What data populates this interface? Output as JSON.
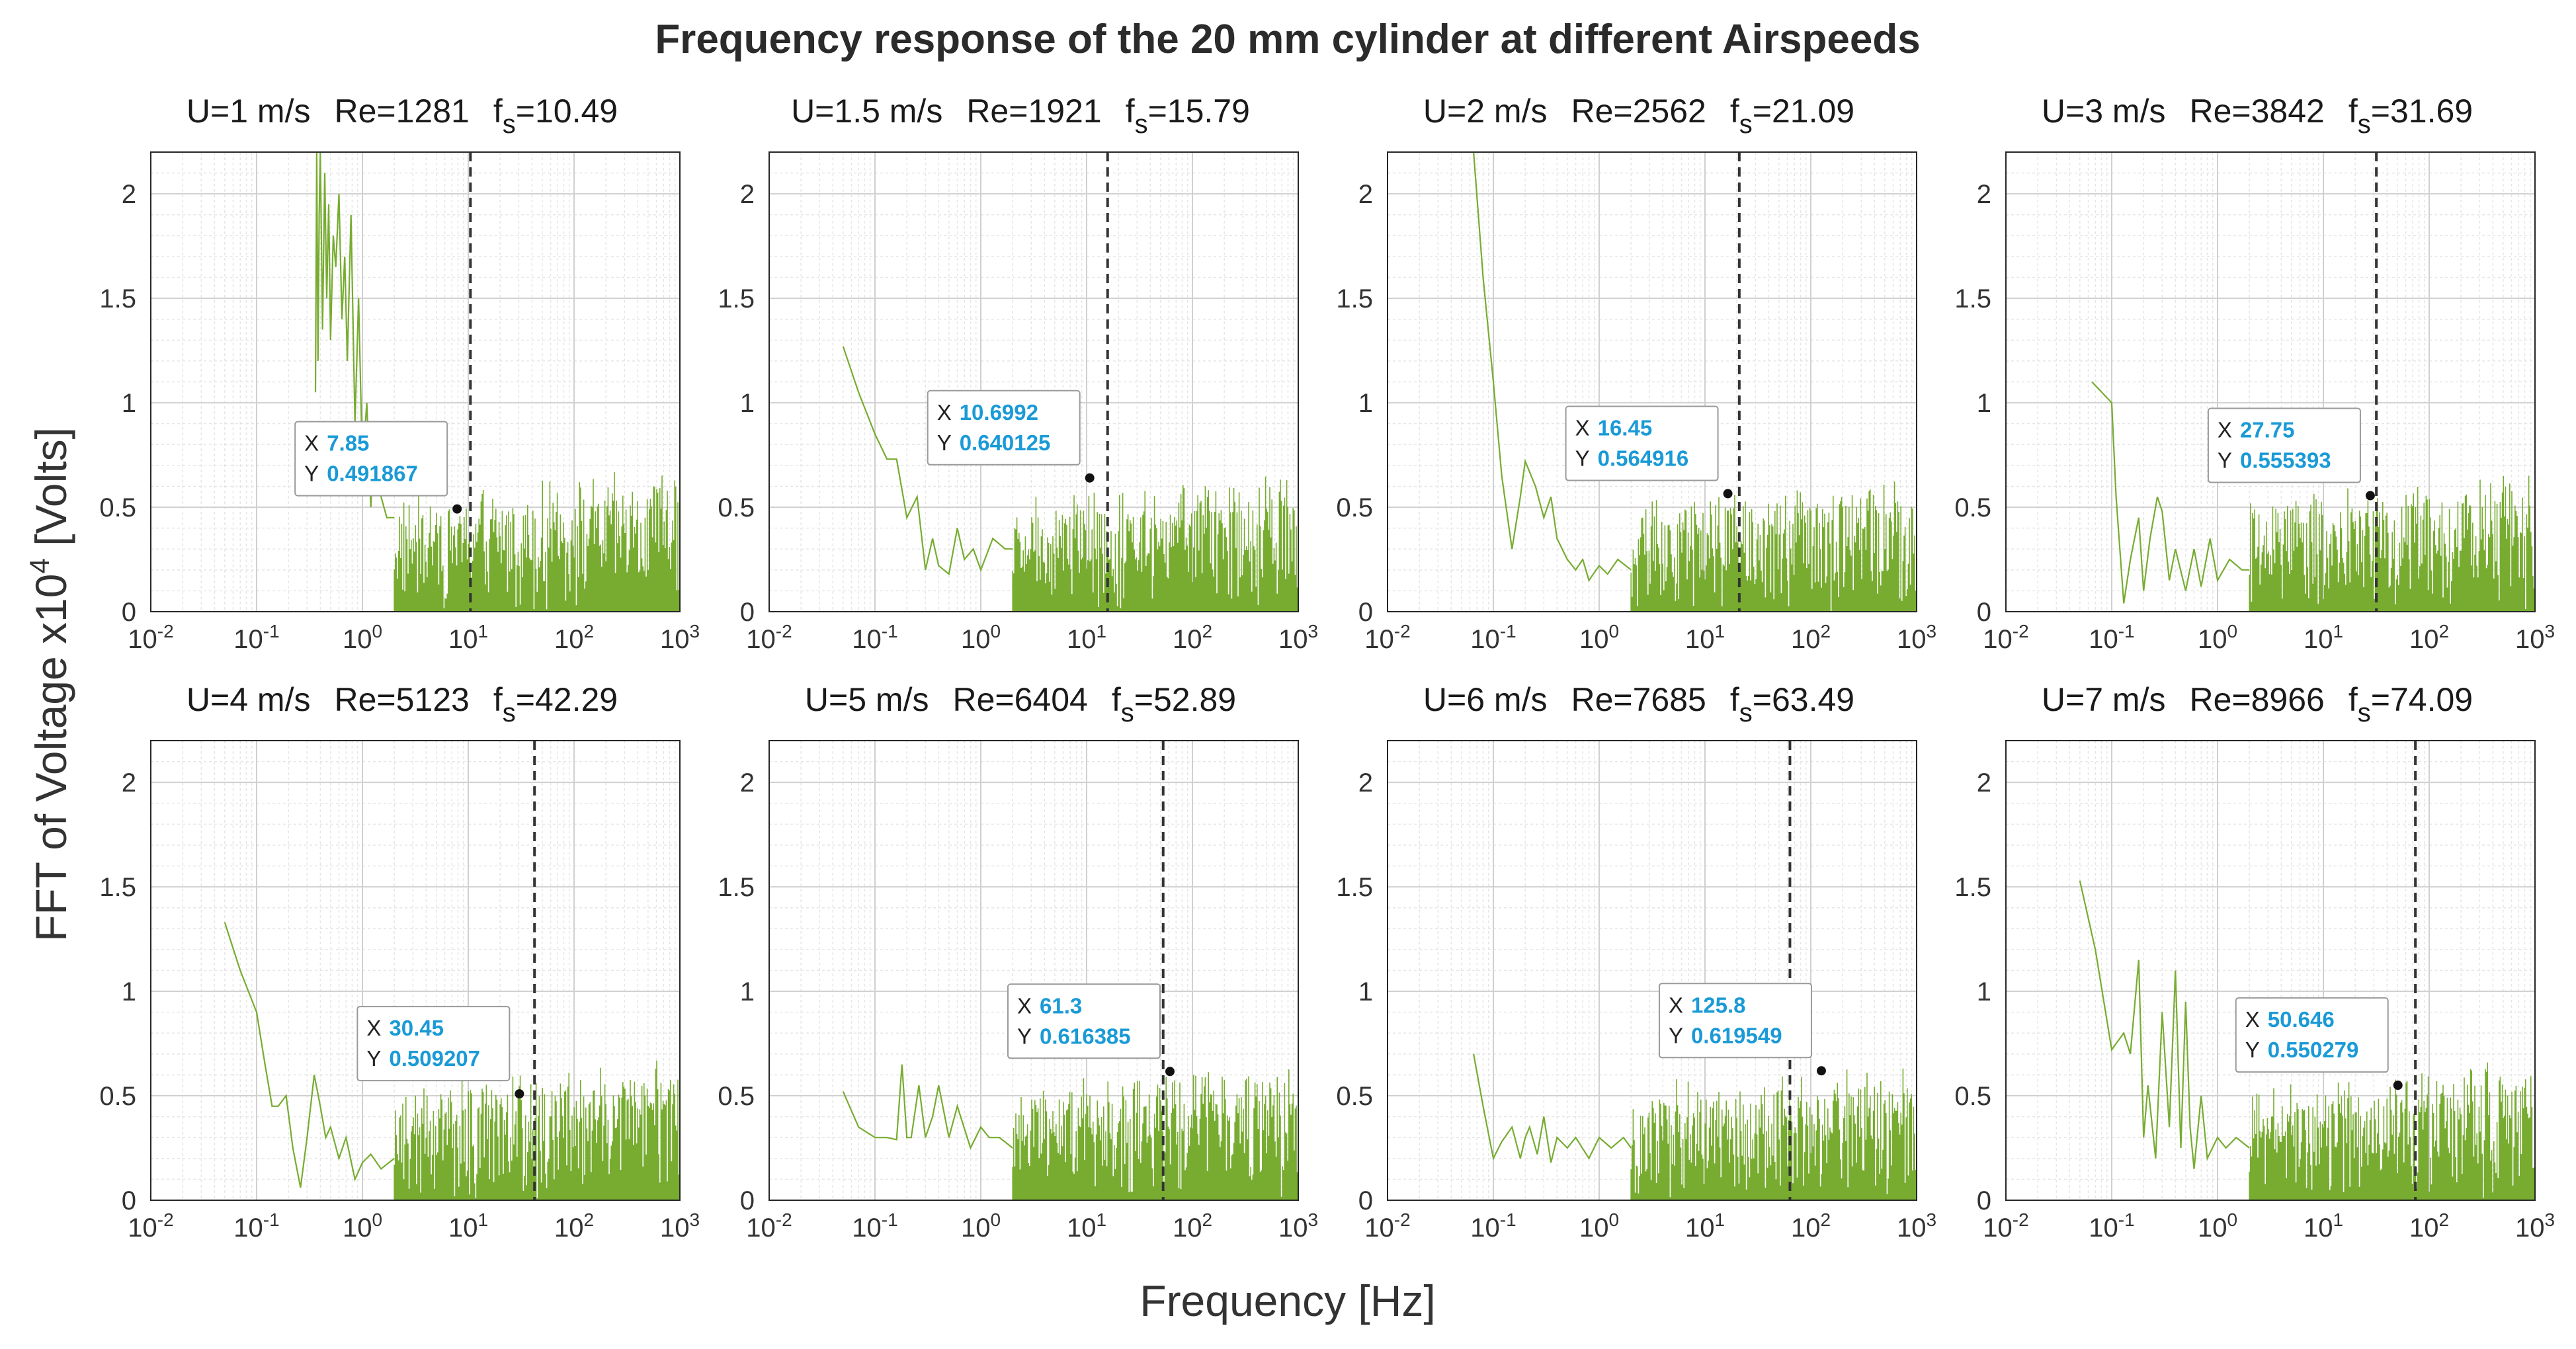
{
  "chart_data": {
    "type": "line",
    "title": "Frequency response of the 20 mm cylinder at different Airspeeds",
    "xlabel": "Frequency [Hz]",
    "ylabel": "FFT of Voltage x10",
    "ylabel_exponent": "4",
    "ylabel_unit": " [Volts]",
    "x_scale": "log",
    "xlim": [
      0.01,
      1000
    ],
    "ylim": [
      0,
      2.2
    ],
    "x_ticks": [
      {
        "value": 0.01,
        "base": "10",
        "exp": "-2"
      },
      {
        "value": 0.1,
        "base": "10",
        "exp": "-1"
      },
      {
        "value": 1,
        "base": "10",
        "exp": "0"
      },
      {
        "value": 10,
        "base": "10",
        "exp": "1"
      },
      {
        "value": 100,
        "base": "10",
        "exp": "2"
      },
      {
        "value": 1000,
        "base": "10",
        "exp": "3"
      }
    ],
    "y_ticks": [
      {
        "value": 0,
        "label": "0"
      },
      {
        "value": 0.5,
        "label": "0.5"
      },
      {
        "value": 1,
        "label": "1"
      },
      {
        "value": 1.5,
        "label": "1.5"
      },
      {
        "value": 2,
        "label": "2"
      }
    ],
    "grid": true,
    "series_color": "#77ac30",
    "marker_line_color": "#333333",
    "panels": [
      {
        "speed": "U=1 m/s",
        "re": "Re=1281",
        "fs_label": "f",
        "fs_sub": "s",
        "fs_value": "=10.49",
        "fs": 10.49,
        "tip": {
          "x_label": "X",
          "x_value": "7.85",
          "y_label": "Y",
          "y_value": "0.491867",
          "x": 7.85,
          "y": 0.491867
        },
        "series": {
          "x": [
            0.36,
            0.37,
            0.38,
            0.39,
            0.4,
            0.42,
            0.44,
            0.46,
            0.48,
            0.5,
            0.53,
            0.56,
            0.6,
            0.64,
            0.68,
            0.72,
            0.78,
            0.85,
            0.92,
            1.0,
            1.1,
            1.2,
            1.3,
            1.5,
            1.7,
            2.0
          ],
          "y": [
            1.05,
            2.2,
            1.2,
            1.9,
            2.2,
            1.35,
            2.1,
            1.5,
            1.95,
            1.3,
            1.8,
            1.65,
            2.0,
            1.4,
            1.7,
            1.2,
            1.9,
            0.9,
            1.5,
            0.7,
            1.0,
            0.5,
            0.9,
            0.55,
            0.45,
            0.45
          ]
        }
      },
      {
        "speed": "U=1.5 m/s",
        "re": "Re=1921",
        "fs_label": "f",
        "fs_sub": "s",
        "fs_value": "=15.79",
        "fs": 15.79,
        "tip": {
          "x_label": "X",
          "x_value": "10.6992",
          "y_label": "Y",
          "y_value": "0.640125",
          "x": 10.6992,
          "y": 0.640125
        },
        "series": {
          "x": [
            0.05,
            0.07,
            0.1,
            0.13,
            0.16,
            0.2,
            0.25,
            0.3,
            0.35,
            0.4,
            0.5,
            0.6,
            0.7,
            0.85,
            1.0,
            1.3,
            1.7,
            2.0
          ],
          "y": [
            1.27,
            1.05,
            0.85,
            0.73,
            0.73,
            0.45,
            0.55,
            0.2,
            0.35,
            0.22,
            0.18,
            0.4,
            0.25,
            0.3,
            0.2,
            0.35,
            0.3,
            0.3
          ]
        }
      },
      {
        "speed": "U=2 m/s",
        "re": "Re=2562",
        "fs_label": "f",
        "fs_sub": "s",
        "fs_value": "=21.09",
        "fs": 21.09,
        "tip": {
          "x_label": "X",
          "x_value": "16.45",
          "y_label": "Y",
          "y_value": "0.564916",
          "x": 16.45,
          "y": 0.564916
        },
        "series": {
          "x": [
            0.065,
            0.08,
            0.1,
            0.12,
            0.15,
            0.18,
            0.2,
            0.25,
            0.3,
            0.35,
            0.4,
            0.5,
            0.6,
            0.7,
            0.8,
            1.0,
            1.2,
            1.5,
            2.0
          ],
          "y": [
            2.2,
            1.6,
            1.1,
            0.65,
            0.3,
            0.55,
            0.72,
            0.6,
            0.45,
            0.55,
            0.35,
            0.25,
            0.2,
            0.25,
            0.15,
            0.22,
            0.18,
            0.25,
            0.2
          ]
        }
      },
      {
        "speed": "U=3 m/s",
        "re": "Re=3842",
        "fs_label": "f",
        "fs_sub": "s",
        "fs_value": "=31.69",
        "fs": 31.69,
        "tip": {
          "x_label": "X",
          "x_value": "27.75",
          "y_label": "Y",
          "y_value": "0.555393",
          "x": 27.75,
          "y": 0.555393
        },
        "series": {
          "x": [
            0.065,
            0.1,
            0.11,
            0.13,
            0.15,
            0.18,
            0.2,
            0.23,
            0.27,
            0.3,
            0.35,
            0.4,
            0.5,
            0.6,
            0.7,
            0.85,
            1.0,
            1.3,
            1.7,
            2.0
          ],
          "y": [
            1.1,
            1.0,
            0.55,
            0.04,
            0.25,
            0.45,
            0.1,
            0.35,
            0.55,
            0.48,
            0.15,
            0.3,
            0.1,
            0.3,
            0.12,
            0.35,
            0.15,
            0.25,
            0.2,
            0.2
          ]
        }
      },
      {
        "speed": "U=4 m/s",
        "re": "Re=5123",
        "fs_label": "f",
        "fs_sub": "s",
        "fs_value": "=42.29",
        "fs": 42.29,
        "tip": {
          "x_label": "X",
          "x_value": "30.45",
          "y_label": "Y",
          "y_value": "0.509207",
          "x": 30.45,
          "y": 0.509207
        },
        "series": {
          "x": [
            0.05,
            0.07,
            0.1,
            0.12,
            0.14,
            0.16,
            0.19,
            0.22,
            0.26,
            0.3,
            0.35,
            0.4,
            0.45,
            0.5,
            0.6,
            0.7,
            0.85,
            1.0,
            1.2,
            1.5,
            2.0
          ],
          "y": [
            1.33,
            1.1,
            0.9,
            0.65,
            0.45,
            0.45,
            0.5,
            0.25,
            0.06,
            0.3,
            0.6,
            0.45,
            0.3,
            0.35,
            0.2,
            0.3,
            0.1,
            0.18,
            0.22,
            0.15,
            0.2
          ]
        }
      },
      {
        "speed": "U=5 m/s",
        "re": "Re=6404",
        "fs_label": "f",
        "fs_sub": "s",
        "fs_value": "=52.89",
        "fs": 52.89,
        "tip": {
          "x_label": "X",
          "x_value": "61.3",
          "y_label": "Y",
          "y_value": "0.616385",
          "x": 61.3,
          "y": 0.616385
        },
        "series": {
          "x": [
            0.05,
            0.07,
            0.1,
            0.13,
            0.16,
            0.18,
            0.2,
            0.22,
            0.26,
            0.3,
            0.35,
            0.4,
            0.5,
            0.6,
            0.8,
            1.0,
            1.2,
            1.5,
            2.0
          ],
          "y": [
            0.52,
            0.35,
            0.3,
            0.3,
            0.29,
            0.65,
            0.3,
            0.3,
            0.55,
            0.3,
            0.4,
            0.55,
            0.3,
            0.45,
            0.25,
            0.35,
            0.3,
            0.3,
            0.25
          ]
        }
      },
      {
        "speed": "U=6 m/s",
        "re": "Re=7685",
        "fs_label": "f",
        "fs_sub": "s",
        "fs_value": "=63.49",
        "fs": 63.49,
        "tip": {
          "x_label": "X",
          "x_value": "125.8",
          "y_label": "Y",
          "y_value": "0.619549",
          "x": 125.8,
          "y": 0.619549
        },
        "series": {
          "x": [
            0.065,
            0.08,
            0.1,
            0.12,
            0.15,
            0.18,
            0.2,
            0.22,
            0.26,
            0.3,
            0.35,
            0.4,
            0.5,
            0.6,
            0.8,
            1.0,
            1.3,
            1.7,
            2.0
          ],
          "y": [
            0.7,
            0.45,
            0.2,
            0.28,
            0.35,
            0.2,
            0.3,
            0.35,
            0.22,
            0.4,
            0.18,
            0.3,
            0.25,
            0.3,
            0.2,
            0.3,
            0.25,
            0.3,
            0.25
          ]
        }
      },
      {
        "speed": "U=7 m/s",
        "re": "Re=8966",
        "fs_label": "f",
        "fs_sub": "s",
        "fs_value": "=74.09",
        "fs": 74.09,
        "tip": {
          "x_label": "X",
          "x_value": "50.646",
          "y_label": "Y",
          "y_value": "0.550279",
          "x": 50.646,
          "y": 0.550279
        },
        "series": {
          "x": [
            0.05,
            0.07,
            0.1,
            0.11,
            0.13,
            0.15,
            0.18,
            0.2,
            0.22,
            0.26,
            0.3,
            0.35,
            0.4,
            0.45,
            0.5,
            0.55,
            0.6,
            0.7,
            0.8,
            1.0,
            1.2,
            1.5,
            2.0
          ],
          "y": [
            1.53,
            1.2,
            0.72,
            0.75,
            0.8,
            0.7,
            1.15,
            0.3,
            0.55,
            0.2,
            0.9,
            0.35,
            1.1,
            0.25,
            0.95,
            0.35,
            0.15,
            0.5,
            0.2,
            0.3,
            0.25,
            0.3,
            0.25
          ]
        }
      }
    ]
  }
}
